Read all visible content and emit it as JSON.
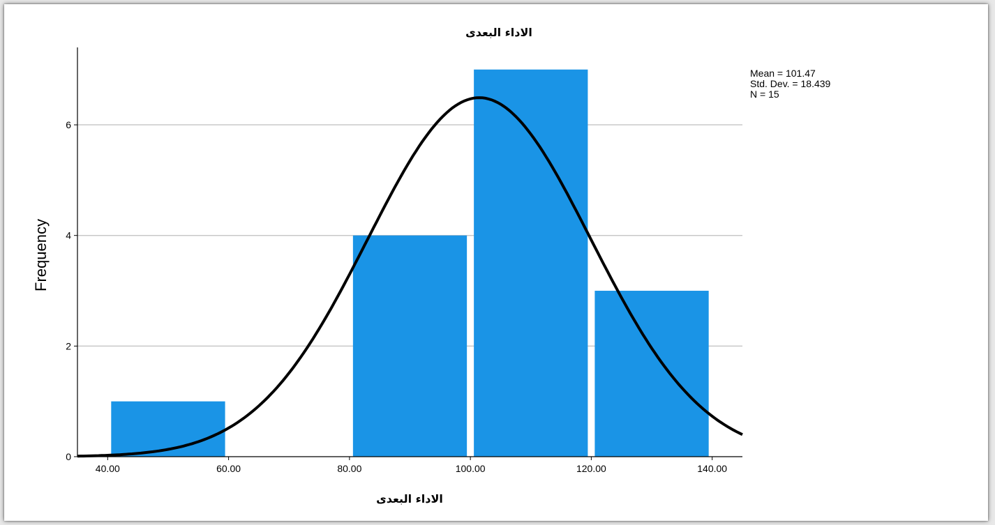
{
  "chart_data": {
    "type": "bar",
    "title": "الاداء البعدى",
    "xlabel": "الاداء البعدى",
    "ylabel": "Frequency",
    "xlim": [
      35,
      145
    ],
    "ylim": [
      0,
      7.4
    ],
    "x_ticks": [
      "40.00",
      "60.00",
      "80.00",
      "100.00",
      "120.00",
      "140.00"
    ],
    "x_tick_values": [
      40,
      60,
      80,
      100,
      120,
      140
    ],
    "y_ticks": [
      "0",
      "2",
      "4",
      "6"
    ],
    "y_tick_values": [
      0,
      2,
      4,
      6
    ],
    "grid": true,
    "bins": [
      {
        "x0": 40,
        "x1": 60,
        "value": 1
      },
      {
        "x0": 60,
        "x1": 80,
        "value": 0
      },
      {
        "x0": 80,
        "x1": 100,
        "value": 4
      },
      {
        "x0": 100,
        "x1": 120,
        "value": 7
      },
      {
        "x0": 120,
        "x1": 140,
        "value": 3
      }
    ],
    "normal_curve": {
      "mean": 101.47,
      "std": 18.439,
      "n": 15,
      "bin_width": 20
    },
    "stats": [
      "Mean = 101.47",
      "Std. Dev. = 18.439",
      "N = 15"
    ],
    "legend_position": "top-right",
    "colors": {
      "bar": "#1a94e6",
      "curve": "#000000",
      "grid": "#c8c8c8"
    }
  }
}
